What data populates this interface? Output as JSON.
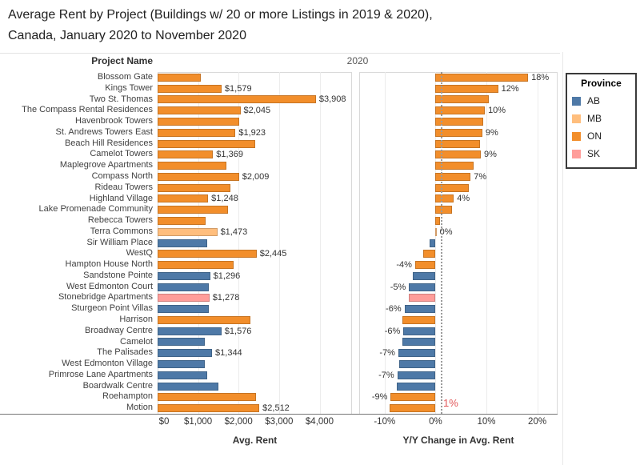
{
  "title": {
    "line1": "Average Rent by Project (Buildings w/ 20 or more Listings in 2019 & 2020),",
    "line2": "Canada, January 2020 to November 2020"
  },
  "header": {
    "row_label": "Project Name",
    "column_label": "2020"
  },
  "chart_data": {
    "type": "bar",
    "orientation": "horizontal",
    "panes": [
      {
        "name": "avg_rent",
        "xlabel": "Avg. Rent",
        "xlim": [
          0,
          4800
        ],
        "ticks": [
          {
            "value": 0,
            "label": "$0"
          },
          {
            "value": 1000,
            "label": "$1,000"
          },
          {
            "value": 2000,
            "label": "$2,000"
          },
          {
            "value": 3000,
            "label": "$3,000"
          },
          {
            "value": 4000,
            "label": "$4,000"
          }
        ]
      },
      {
        "name": "yoy_change",
        "xlabel": "Y/Y Change in Avg. Rent",
        "xlim": [
          -15,
          24
        ],
        "ticks": [
          {
            "value": -10,
            "label": "-10%"
          },
          {
            "value": 0,
            "label": "0%"
          },
          {
            "value": 10,
            "label": "10%"
          },
          {
            "value": 20,
            "label": "20%"
          }
        ],
        "reference_line": {
          "value": 1,
          "label": "1%",
          "label_color": "#e15759"
        }
      }
    ],
    "rows": [
      {
        "project": "Blossom Gate",
        "province": "ON",
        "avg_rent": 1060,
        "rent_label": "",
        "yoy_pct": 18.2,
        "yoy_label": "18%"
      },
      {
        "project": "Kings Tower",
        "province": "ON",
        "avg_rent": 1579,
        "rent_label": "$1,579",
        "yoy_pct": 12.3,
        "yoy_label": "12%"
      },
      {
        "project": "Two St. Thomas",
        "province": "ON",
        "avg_rent": 3908,
        "rent_label": "$3,908",
        "yoy_pct": 10.4,
        "yoy_label": ""
      },
      {
        "project": "The Compass Rental Residences",
        "province": "ON",
        "avg_rent": 2045,
        "rent_label": "$2,045",
        "yoy_pct": 9.7,
        "yoy_label": "10%"
      },
      {
        "project": "Havenbrook Towers",
        "province": "ON",
        "avg_rent": 2010,
        "rent_label": "",
        "yoy_pct": 9.4,
        "yoy_label": ""
      },
      {
        "project": "St. Andrews Towers East",
        "province": "ON",
        "avg_rent": 1923,
        "rent_label": "$1,923",
        "yoy_pct": 9.2,
        "yoy_label": "9%"
      },
      {
        "project": "Beach Hill Residences",
        "province": "ON",
        "avg_rent": 2400,
        "rent_label": "",
        "yoy_pct": 8.7,
        "yoy_label": ""
      },
      {
        "project": "Camelot Towers",
        "province": "ON",
        "avg_rent": 1369,
        "rent_label": "$1,369",
        "yoy_pct": 8.9,
        "yoy_label": "9%"
      },
      {
        "project": "Maplegrove Apartments",
        "province": "ON",
        "avg_rent": 1690,
        "rent_label": "",
        "yoy_pct": 7.5,
        "yoy_label": ""
      },
      {
        "project": "Compass North",
        "province": "ON",
        "avg_rent": 2009,
        "rent_label": "$2,009",
        "yoy_pct": 6.9,
        "yoy_label": "7%"
      },
      {
        "project": "Rideau Towers",
        "province": "ON",
        "avg_rent": 1790,
        "rent_label": "",
        "yoy_pct": 6.6,
        "yoy_label": ""
      },
      {
        "project": "Highland Village",
        "province": "ON",
        "avg_rent": 1248,
        "rent_label": "$1,248",
        "yoy_pct": 3.6,
        "yoy_label": "4%"
      },
      {
        "project": "Lake Promenade Community",
        "province": "ON",
        "avg_rent": 1740,
        "rent_label": "",
        "yoy_pct": 3.3,
        "yoy_label": ""
      },
      {
        "project": "Rebecca Towers",
        "province": "ON",
        "avg_rent": 1180,
        "rent_label": "",
        "yoy_pct": 0.9,
        "yoy_label": ""
      },
      {
        "project": "Terra Commons",
        "province": "MB",
        "avg_rent": 1473,
        "rent_label": "$1,473",
        "yoy_pct": 0.2,
        "yoy_label": "0%"
      },
      {
        "project": "Sir William Place",
        "province": "AB",
        "avg_rent": 1230,
        "rent_label": "",
        "yoy_pct": -1.1,
        "yoy_label": ""
      },
      {
        "project": "WestQ",
        "province": "ON",
        "avg_rent": 2445,
        "rent_label": "$2,445",
        "yoy_pct": -2.4,
        "yoy_label": ""
      },
      {
        "project": "Hampton House North",
        "province": "ON",
        "avg_rent": 1880,
        "rent_label": "",
        "yoy_pct": -4.0,
        "yoy_label": "-4%"
      },
      {
        "project": "Sandstone Pointe",
        "province": "AB",
        "avg_rent": 1296,
        "rent_label": "$1,296",
        "yoy_pct": -4.4,
        "yoy_label": ""
      },
      {
        "project": "West Edmonton Court",
        "province": "AB",
        "avg_rent": 1255,
        "rent_label": "",
        "yoy_pct": -5.2,
        "yoy_label": "-5%"
      },
      {
        "project": "Stonebridge Apartments",
        "province": "SK",
        "avg_rent": 1278,
        "rent_label": "$1,278",
        "yoy_pct": -5.3,
        "yoy_label": ""
      },
      {
        "project": "Sturgeon Point Villas",
        "province": "AB",
        "avg_rent": 1270,
        "rent_label": "",
        "yoy_pct": -6.1,
        "yoy_label": "-6%"
      },
      {
        "project": "Harrison",
        "province": "ON",
        "avg_rent": 2300,
        "rent_label": "",
        "yoy_pct": -6.5,
        "yoy_label": ""
      },
      {
        "project": "Broadway Centre",
        "province": "AB",
        "avg_rent": 1576,
        "rent_label": "$1,576",
        "yoy_pct": -6.3,
        "yoy_label": "-6%"
      },
      {
        "project": "Camelot",
        "province": "AB",
        "avg_rent": 1170,
        "rent_label": "",
        "yoy_pct": -6.5,
        "yoy_label": ""
      },
      {
        "project": "The Palisades",
        "province": "AB",
        "avg_rent": 1344,
        "rent_label": "$1,344",
        "yoy_pct": -7.3,
        "yoy_label": "-7%"
      },
      {
        "project": "West Edmonton Village",
        "province": "AB",
        "avg_rent": 1175,
        "rent_label": "",
        "yoy_pct": -7.2,
        "yoy_label": ""
      },
      {
        "project": "Primrose Lane Apartments",
        "province": "AB",
        "avg_rent": 1220,
        "rent_label": "",
        "yoy_pct": -7.5,
        "yoy_label": "-7%"
      },
      {
        "project": "Boardwalk Centre",
        "province": "AB",
        "avg_rent": 1510,
        "rent_label": "",
        "yoy_pct": -7.6,
        "yoy_label": ""
      },
      {
        "project": "Roehampton",
        "province": "ON",
        "avg_rent": 2420,
        "rent_label": "",
        "yoy_pct": -8.8,
        "yoy_label": "-9%"
      },
      {
        "project": "Motion",
        "province": "ON",
        "avg_rent": 2512,
        "rent_label": "$2,512",
        "yoy_pct": -9.0,
        "yoy_label": ""
      }
    ],
    "legend": {
      "title": "Province",
      "entries": [
        {
          "label": "AB",
          "color": "#4e79a7"
        },
        {
          "label": "MB",
          "color": "#ffbe7d"
        },
        {
          "label": "ON",
          "color": "#f28e2b"
        },
        {
          "label": "SK",
          "color": "#ff9d9a"
        }
      ]
    }
  }
}
